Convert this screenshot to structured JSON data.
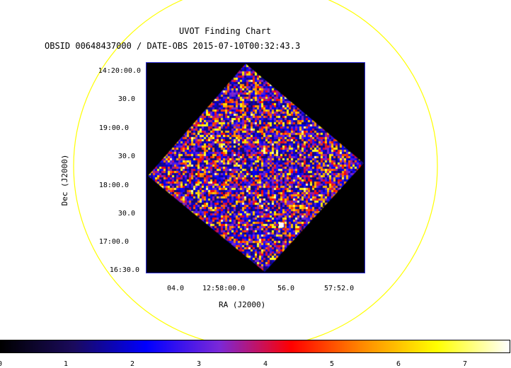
{
  "title": "UVOT Finding Chart",
  "subtitle": "OBSID 00648437000 / DATE-OBS 2015-07-10T00:32:43.3",
  "axes": {
    "xlabel": "RA (J2000)",
    "ylabel": "Dec (J2000)",
    "x_ticks": [
      "04.0",
      "12:58:00.0",
      "56.0",
      "57:52.0"
    ],
    "y_ticks": [
      "14:20:00.0",
      "30.0",
      "19:00.0",
      "30.0",
      "18:00.0",
      "30.0",
      "17:00.0",
      "16:30.0"
    ]
  },
  "colorbar": {
    "ticks": [
      "0",
      "1",
      "2",
      "3",
      "4",
      "5",
      "6",
      "7"
    ],
    "colors": [
      "#000000",
      "#1a0a5c",
      "#0000ff",
      "#7a28d8",
      "#ff0000",
      "#ff8c00",
      "#ffff00",
      "#ffffff"
    ]
  },
  "colors": {
    "fov_circle": "#ffff00",
    "frame": "#2b2bd6",
    "background": "#ffffff"
  }
}
